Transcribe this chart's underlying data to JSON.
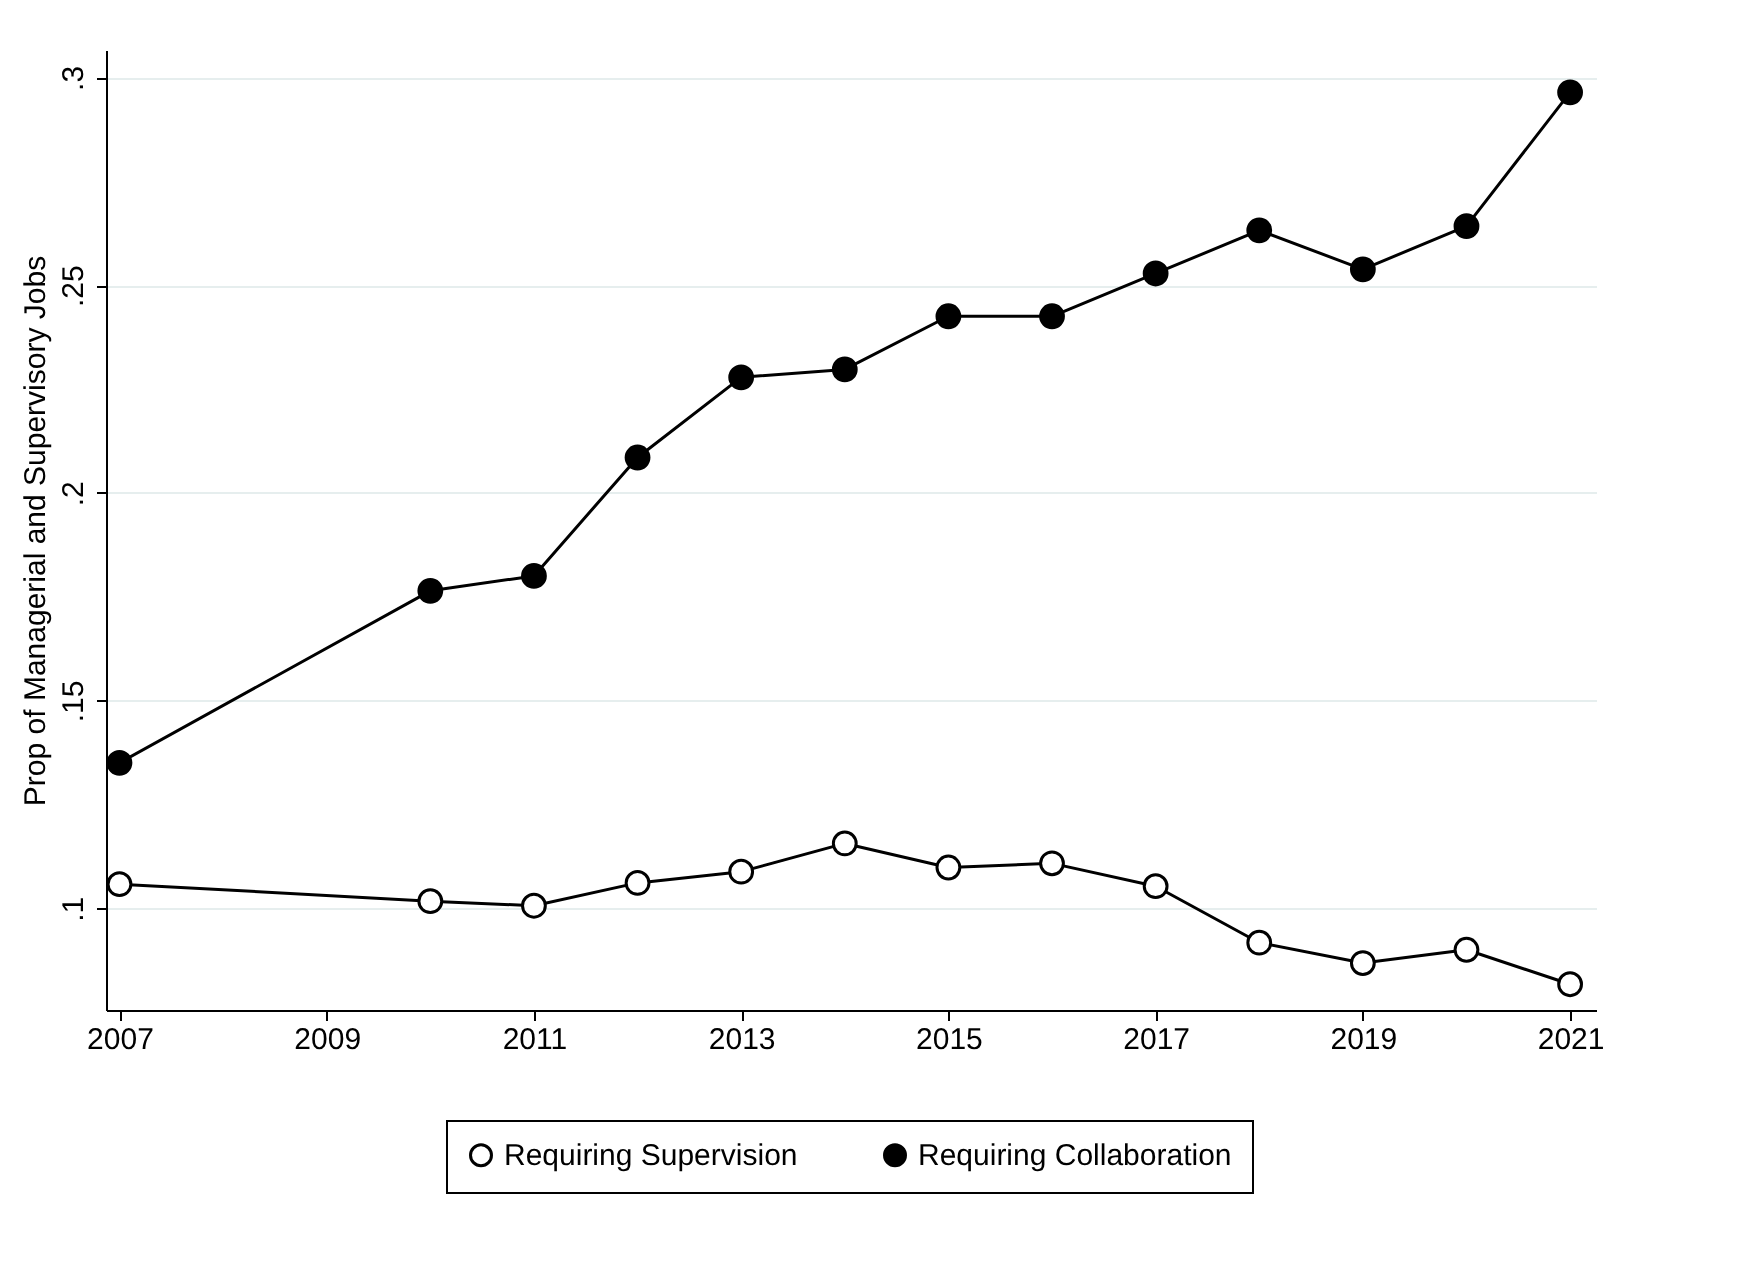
{
  "chart_data": {
    "type": "line",
    "x": [
      2007,
      2010,
      2011,
      2012,
      2013,
      2014,
      2015,
      2016,
      2017,
      2018,
      2019,
      2020,
      2021
    ],
    "series": [
      {
        "name": "Requiring Supervision",
        "color": "#000000",
        "values": [
          0.1058,
          0.1017,
          0.1006,
          0.1061,
          0.1088,
          0.1156,
          0.1098,
          0.1108,
          0.1053,
          0.0917,
          0.0868,
          0.09,
          0.0817
        ]
      },
      {
        "name": "Requiring Collaboration",
        "color": "#000000",
        "values": [
          0.135,
          0.1764,
          0.18,
          0.2085,
          0.2278,
          0.2297,
          0.2425,
          0.2425,
          0.2528,
          0.2632,
          0.2538,
          0.2642,
          0.2964
        ]
      }
    ],
    "ylabel": "Prop of Managerial and Supervisory Jobs",
    "xlim": [
      2006.87,
      2021.25
    ],
    "xticks": [
      2007,
      2009,
      2011,
      2013,
      2015,
      2017,
      2019,
      2021
    ],
    "ylim": [
      0.0755,
      0.3066
    ],
    "yticks": [
      {
        "value": 0.1,
        "label": ".1"
      },
      {
        "value": 0.15,
        "label": ".15"
      },
      {
        "value": 0.2,
        "label": ".2"
      },
      {
        "value": 0.25,
        "label": ".25"
      },
      {
        "value": 0.3,
        "label": ".3"
      }
    ],
    "grid": "y",
    "legend": "bottom",
    "marker": "circle",
    "line_style": "solid"
  }
}
